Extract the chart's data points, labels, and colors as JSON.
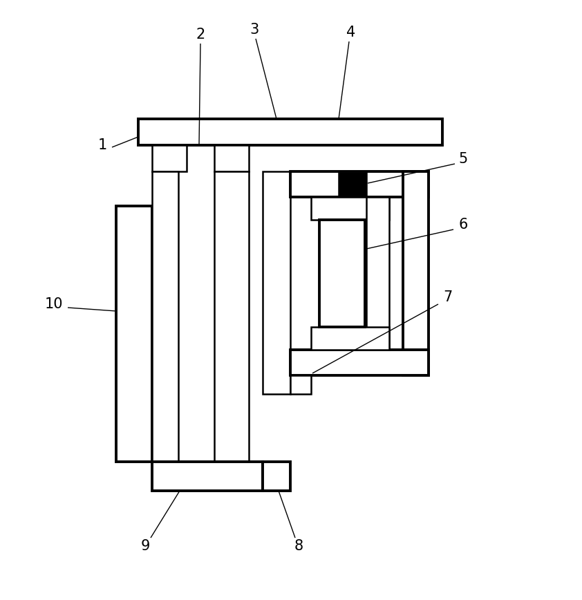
{
  "bg_color": "#ffffff",
  "line_color": "#000000",
  "lw_thin": 1.8,
  "lw_thick": 2.8,
  "figsize": [
    8.42,
    8.68
  ],
  "dpi": 100
}
